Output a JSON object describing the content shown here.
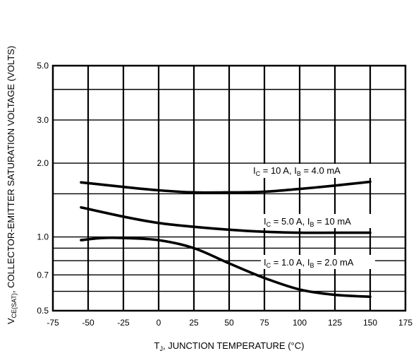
{
  "chart_data": {
    "type": "line",
    "xlabel_main": "T",
    "xlabel_sub": "J",
    "xlabel_rest": ", JUNCTION TEMPERATURE (°C)",
    "ylabel_main": "V",
    "ylabel_sub": "CE(SAT)",
    "ylabel_rest": ", COLLECTOR-EMITTER SATURATION VOLTAGE (VOLTS)",
    "xlim": [
      -75,
      175
    ],
    "ylim": [
      0.5,
      5.0
    ],
    "yscale": "log",
    "grid": true,
    "x_ticks": [
      "-75",
      "-50",
      "-25",
      "0",
      "25",
      "50",
      "75",
      "100",
      "125",
      "150",
      "175"
    ],
    "y_ticks": [
      {
        "value": 0.5,
        "label": "0.5"
      },
      {
        "value": 0.7,
        "label": "0.7"
      },
      {
        "value": 1.0,
        "label": "1.0"
      },
      {
        "value": 2.0,
        "label": "2.0"
      },
      {
        "value": 3.0,
        "label": "3.0"
      },
      {
        "value": 5.0,
        "label": "5.0"
      }
    ],
    "y_grid_values": [
      0.5,
      0.6,
      0.7,
      0.8,
      0.9,
      1.0,
      1.5,
      2.0,
      3.0,
      4.0,
      5.0
    ],
    "series": [
      {
        "ic": "10 A",
        "ib": "4.0 mA",
        "x": [
          -55,
          -25,
          0,
          25,
          50,
          75,
          100,
          125,
          150
        ],
        "y": [
          1.67,
          1.6,
          1.55,
          1.52,
          1.52,
          1.53,
          1.57,
          1.62,
          1.68
        ]
      },
      {
        "ic": "5.0 A",
        "ib": "10 mA",
        "x": [
          -55,
          -25,
          0,
          25,
          50,
          75,
          100,
          125,
          150
        ],
        "y": [
          1.32,
          1.21,
          1.14,
          1.1,
          1.07,
          1.05,
          1.04,
          1.04,
          1.04
        ]
      },
      {
        "ic": "1.0 A",
        "ib": "2.0 mA",
        "x": [
          -55,
          -40,
          -25,
          0,
          25,
          50,
          75,
          100,
          125,
          150
        ],
        "y": [
          0.97,
          0.99,
          0.99,
          0.97,
          0.9,
          0.78,
          0.68,
          0.61,
          0.58,
          0.57
        ]
      }
    ]
  }
}
